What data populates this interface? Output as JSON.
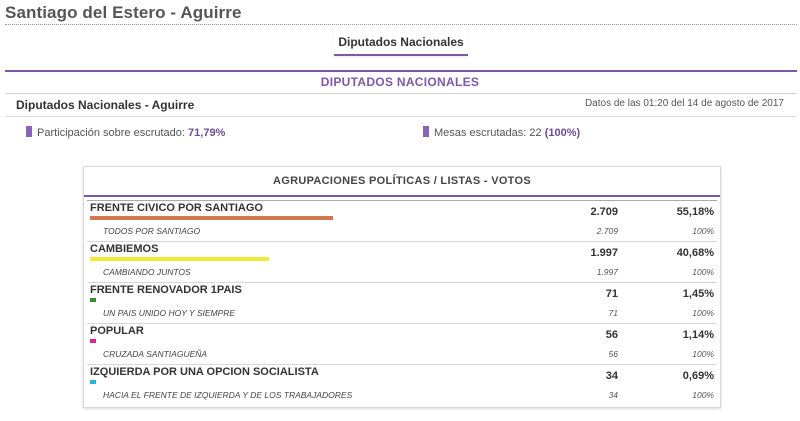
{
  "page": {
    "title": "Santiago del Estero - Aguirre"
  },
  "tabs": [
    {
      "label": "Diputados Nacionales",
      "active": true
    }
  ],
  "section": {
    "title": "DIPUTADOS NACIONALES"
  },
  "subheader": {
    "title": "Diputados Nacionales - Aguirre",
    "datos": "Datos de las 01:20 del 14 de agosto de 2017"
  },
  "stats": {
    "participacion": {
      "label": "Participación sobre escrutado:",
      "value": "71,79%"
    },
    "mesas": {
      "label": "Mesas escrutadas: 22",
      "value": "(100%)"
    }
  },
  "table": {
    "header": "AGRUPACIONES POLÍTICAS / LISTAS - VOTOS",
    "parties": [
      {
        "name": "FRENTE CIVICO POR SANTIAGO",
        "votes": "2.709",
        "pct": "55,18%",
        "share": 55.18,
        "color": "#d4764e",
        "list": {
          "name": "TODOS POR SANTIAGO",
          "votes": "2.709",
          "pct": "100%"
        }
      },
      {
        "name": "CAMBIEMOS",
        "votes": "1.997",
        "pct": "40,68%",
        "share": 40.68,
        "color": "#f2ea3a",
        "list": {
          "name": "CAMBIANDO JUNTOS",
          "votes": "1.997",
          "pct": "100%"
        }
      },
      {
        "name": "FRENTE RENOVADOR 1PAIS",
        "votes": "71",
        "pct": "1,45%",
        "share": 1.45,
        "color": "#3c8a3a",
        "list": {
          "name": "UN PAIS UNIDO HOY Y SIEMPRE",
          "votes": "71",
          "pct": "100%"
        }
      },
      {
        "name": "POPULAR",
        "votes": "56",
        "pct": "1,14%",
        "share": 1.14,
        "color": "#e0208c",
        "list": {
          "name": "CRUZADA SANTIAGUEÑA",
          "votes": "56",
          "pct": "100%"
        }
      },
      {
        "name": "IZQUIERDA POR UNA OPCION SOCIALISTA",
        "votes": "34",
        "pct": "0,69%",
        "share": 0.69,
        "color": "#28b6d8",
        "list": {
          "name": "HACIA EL FRENTE DE IZQUIERDA Y DE LOS TRABAJADORES",
          "votes": "34",
          "pct": "100%"
        }
      }
    ]
  }
}
